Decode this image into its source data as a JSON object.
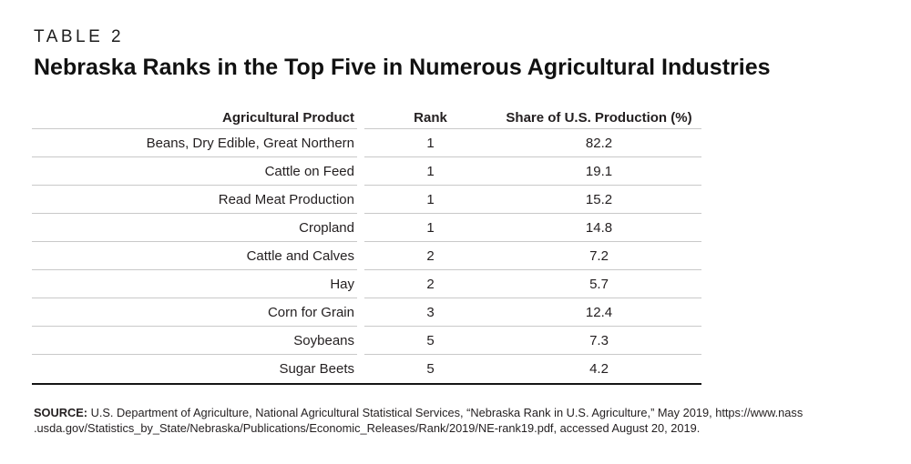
{
  "page": {
    "bg_color": "#ffffff",
    "text_color": "#231f20",
    "rule_color": "#c9c9c9",
    "bottom_rule_color": "#151515"
  },
  "table_label": "TABLE 2",
  "title": "Nebraska Ranks in the Top Five in Numerous Agricultural Industries",
  "table": {
    "columns": [
      "Agricultural Product",
      "Rank",
      "Share of U.S. Production (%)"
    ],
    "rows": [
      {
        "product": "Beans, Dry Edible, Great Northern",
        "rank": "1",
        "share": "82.2"
      },
      {
        "product": "Cattle on Feed",
        "rank": "1",
        "share": "19.1"
      },
      {
        "product": "Read Meat Production",
        "rank": "1",
        "share": "15.2"
      },
      {
        "product": "Cropland",
        "rank": "1",
        "share": "14.8"
      },
      {
        "product": "Cattle and Calves",
        "rank": "2",
        "share": "7.2"
      },
      {
        "product": "Hay",
        "rank": "2",
        "share": "5.7"
      },
      {
        "product": "Corn for Grain",
        "rank": "3",
        "share": "12.4"
      },
      {
        "product": "Soybeans",
        "rank": "5",
        "share": "7.3"
      },
      {
        "product": "Sugar Beets",
        "rank": "5",
        "share": "4.2"
      }
    ]
  },
  "source": {
    "label": "SOURCE:",
    "line1": " U.S. Department of Agriculture, National Agricultural Statistical Services, “Nebraska Rank in U.S. Agriculture,” May 2019, https://www.nass",
    "line2": ".usda.gov/Statistics_by_State/Nebraska/Publications/Economic_Releases/Rank/2019/NE-rank19.pdf, accessed August 20, 2019."
  }
}
